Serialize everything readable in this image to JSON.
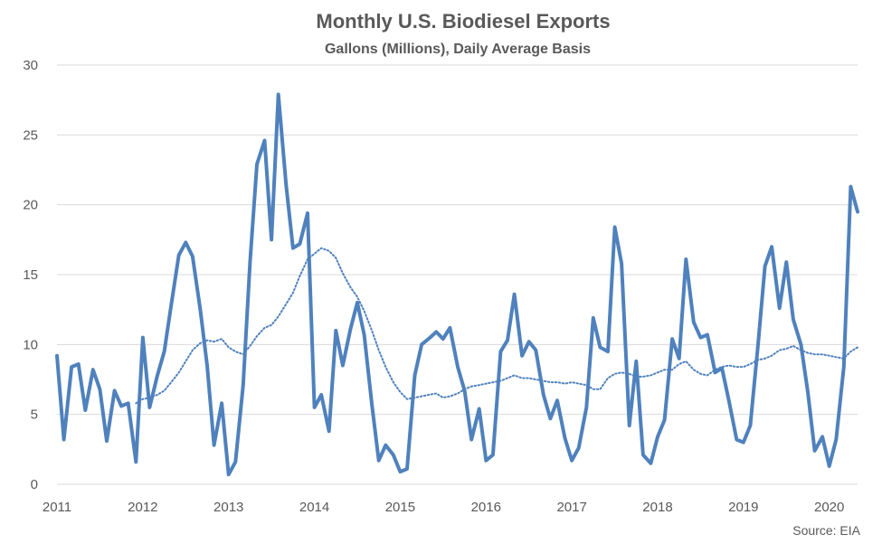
{
  "chart_data": {
    "type": "line",
    "title": "Monthly U.S. Biodiesel Exports",
    "subtitle": "Gallons (Millions), Daily Average Basis",
    "source": "Source: EIA",
    "xlabel": "",
    "ylabel": "",
    "ylim": [
      0,
      30
    ],
    "xlim": [
      2011,
      2020.33
    ],
    "yticks": [
      0,
      5,
      10,
      15,
      20,
      25,
      30
    ],
    "xticks": [
      "2011",
      "2012",
      "2013",
      "2014",
      "2015",
      "2016",
      "2017",
      "2018",
      "2019",
      "2020"
    ],
    "grid": "horizontal",
    "legend": "none",
    "colors": {
      "series": "#4f81bd",
      "grid": "#d9d9d9",
      "text": "#595959"
    },
    "series": [
      {
        "style": "solid",
        "x": [
          2011.0,
          2011.08,
          2011.17,
          2011.25,
          2011.33,
          2011.42,
          2011.5,
          2011.58,
          2011.67,
          2011.75,
          2011.83,
          2011.92,
          2012.0,
          2012.08,
          2012.17,
          2012.25,
          2012.33,
          2012.42,
          2012.5,
          2012.58,
          2012.67,
          2012.75,
          2012.83,
          2012.92,
          2013.0,
          2013.08,
          2013.17,
          2013.25,
          2013.33,
          2013.42,
          2013.5,
          2013.58,
          2013.67,
          2013.75,
          2013.83,
          2013.92,
          2014.0,
          2014.08,
          2014.17,
          2014.25,
          2014.33,
          2014.42,
          2014.5,
          2014.58,
          2014.67,
          2014.75,
          2014.83,
          2014.92,
          2015.0,
          2015.08,
          2015.17,
          2015.25,
          2015.33,
          2015.42,
          2015.5,
          2015.58,
          2015.67,
          2015.75,
          2015.83,
          2015.92,
          2016.0,
          2016.08,
          2016.17,
          2016.25,
          2016.33,
          2016.42,
          2016.5,
          2016.58,
          2016.67,
          2016.75,
          2016.83,
          2016.92,
          2017.0,
          2017.08,
          2017.17,
          2017.25,
          2017.33,
          2017.42,
          2017.5,
          2017.58,
          2017.67,
          2017.75,
          2017.83,
          2017.92,
          2018.0,
          2018.08,
          2018.17,
          2018.25,
          2018.33,
          2018.42,
          2018.5,
          2018.58,
          2018.67,
          2018.75,
          2018.83,
          2018.92,
          2019.0,
          2019.08,
          2019.17,
          2019.25,
          2019.33,
          2019.42,
          2019.5,
          2019.58,
          2019.67,
          2019.75,
          2019.83,
          2019.92,
          2020.0,
          2020.08,
          2020.17,
          2020.25,
          2020.33
        ],
        "values": [
          9.2,
          3.2,
          8.4,
          8.6,
          5.3,
          8.2,
          6.8,
          3.1,
          6.7,
          5.6,
          5.8,
          1.6,
          10.5,
          5.5,
          7.8,
          9.5,
          12.8,
          16.4,
          17.3,
          16.3,
          12.5,
          8.5,
          2.8,
          5.8,
          0.7,
          1.6,
          7.1,
          15.9,
          22.9,
          24.6,
          17.5,
          27.9,
          21.4,
          16.9,
          17.2,
          19.4,
          5.5,
          6.4,
          3.8,
          11.0,
          8.5,
          11.1,
          13.0,
          10.7,
          5.7,
          1.7,
          2.8,
          2.1,
          0.9,
          1.1,
          7.8,
          10.0,
          10.4,
          10.9,
          10.4,
          11.2,
          8.4,
          6.7,
          3.2,
          5.4,
          1.7,
          2.1,
          9.5,
          10.3,
          13.6,
          9.2,
          10.2,
          9.6,
          6.4,
          4.7,
          6.0,
          3.3,
          1.7,
          2.6,
          5.5,
          11.9,
          9.8,
          9.5,
          18.4,
          15.8,
          4.2,
          8.8,
          2.1,
          1.5,
          3.4,
          4.6,
          10.4,
          9.0,
          16.1,
          11.6,
          10.5,
          10.7,
          8.0,
          8.3,
          6.0,
          3.2,
          3.0,
          4.2,
          10.0,
          15.6,
          17.0,
          12.6,
          15.9,
          11.8,
          10.0,
          6.6,
          2.4,
          3.4,
          1.3,
          3.2,
          8.4,
          21.3,
          19.5
        ]
      },
      {
        "style": "dotted",
        "x": [
          2011.92,
          2012.0,
          2012.08,
          2012.17,
          2012.25,
          2012.33,
          2012.42,
          2012.5,
          2012.58,
          2012.67,
          2012.75,
          2012.83,
          2012.92,
          2013.0,
          2013.08,
          2013.17,
          2013.25,
          2013.33,
          2013.42,
          2013.5,
          2013.58,
          2013.67,
          2013.75,
          2013.83,
          2013.92,
          2014.0,
          2014.08,
          2014.17,
          2014.25,
          2014.33,
          2014.42,
          2014.5,
          2014.58,
          2014.67,
          2014.75,
          2014.83,
          2014.92,
          2015.0,
          2015.08,
          2015.17,
          2015.25,
          2015.33,
          2015.42,
          2015.5,
          2015.58,
          2015.67,
          2015.75,
          2015.83,
          2015.92,
          2016.0,
          2016.08,
          2016.17,
          2016.25,
          2016.33,
          2016.42,
          2016.5,
          2016.58,
          2016.67,
          2016.75,
          2016.83,
          2016.92,
          2017.0,
          2017.08,
          2017.17,
          2017.25,
          2017.33,
          2017.42,
          2017.5,
          2017.58,
          2017.67,
          2017.75,
          2017.83,
          2017.92,
          2018.0,
          2018.08,
          2018.17,
          2018.25,
          2018.33,
          2018.42,
          2018.5,
          2018.58,
          2018.67,
          2018.75,
          2018.83,
          2018.92,
          2019.0,
          2019.08,
          2019.17,
          2019.25,
          2019.33,
          2019.42,
          2019.5,
          2019.58,
          2019.67,
          2019.75,
          2019.83,
          2019.92,
          2020.0,
          2020.08,
          2020.17,
          2020.25,
          2020.33
        ],
        "values": [
          5.8,
          6.1,
          6.2,
          6.4,
          6.7,
          7.3,
          8.0,
          8.8,
          9.6,
          10.1,
          10.3,
          10.2,
          10.4,
          9.8,
          9.5,
          9.3,
          9.9,
          10.6,
          11.2,
          11.4,
          12.0,
          12.9,
          13.7,
          14.9,
          16.1,
          16.5,
          16.9,
          16.7,
          16.2,
          15.1,
          14.1,
          13.4,
          12.4,
          11.0,
          9.6,
          8.4,
          7.3,
          6.6,
          6.1,
          6.2,
          6.3,
          6.4,
          6.5,
          6.2,
          6.3,
          6.5,
          6.8,
          7.0,
          7.1,
          7.2,
          7.3,
          7.4,
          7.6,
          7.8,
          7.6,
          7.6,
          7.5,
          7.4,
          7.3,
          7.3,
          7.2,
          7.3,
          7.2,
          7.1,
          6.8,
          6.8,
          7.6,
          7.9,
          8.0,
          7.9,
          7.7,
          7.7,
          7.8,
          8.0,
          8.2,
          8.2,
          8.6,
          8.8,
          8.2,
          7.9,
          7.8,
          8.2,
          8.4,
          8.5,
          8.4,
          8.4,
          8.6,
          8.9,
          9.0,
          9.2,
          9.6,
          9.7,
          9.9,
          9.6,
          9.4,
          9.3,
          9.3,
          9.2,
          9.1,
          9.0,
          9.5,
          9.8
        ]
      }
    ]
  }
}
